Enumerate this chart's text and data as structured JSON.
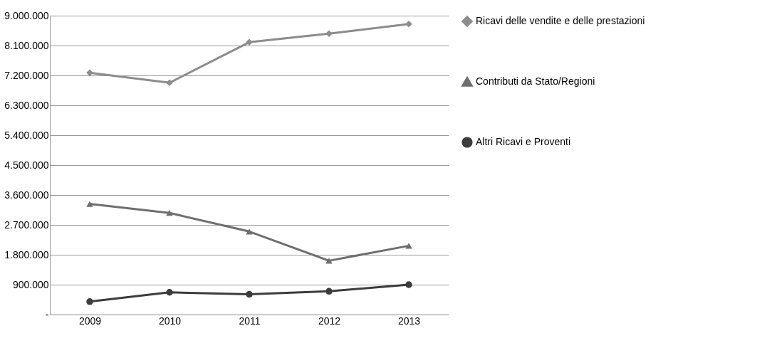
{
  "chart_data": {
    "type": "line",
    "categories": [
      "2009",
      "2010",
      "2011",
      "2012",
      "2013"
    ],
    "series": [
      {
        "name": "Ricavi delle vendite e delle prestazioni",
        "color": "#8c8c8c",
        "marker": "diamond",
        "values": [
          7280000,
          6980000,
          8200000,
          8460000,
          8750000
        ]
      },
      {
        "name": "Contributi da Stato/Regioni",
        "color": "#6e6e6e",
        "marker": "triangle",
        "values": [
          3330000,
          3060000,
          2500000,
          1620000,
          2070000
        ]
      },
      {
        "name": "Altri Ricavi e Proventi",
        "color": "#3c3c3c",
        "marker": "circle",
        "values": [
          390000,
          670000,
          610000,
          700000,
          900000
        ]
      }
    ],
    "ylim": [
      0,
      9000000
    ],
    "yticks": [
      {
        "value": 0,
        "label": "-"
      },
      {
        "value": 900000,
        "label": "900.000"
      },
      {
        "value": 1800000,
        "label": "1.800.000"
      },
      {
        "value": 2700000,
        "label": "2.700.000"
      },
      {
        "value": 3600000,
        "label": "3.600.000"
      },
      {
        "value": 4500000,
        "label": "4.500.000"
      },
      {
        "value": 5400000,
        "label": "5.400.000"
      },
      {
        "value": 6300000,
        "label": "6.300.000"
      },
      {
        "value": 7200000,
        "label": "7.200.000"
      },
      {
        "value": 8100000,
        "label": "8.100.000"
      },
      {
        "value": 9000000,
        "label": "9.000.000"
      }
    ],
    "grid": "y",
    "legend": "right"
  }
}
